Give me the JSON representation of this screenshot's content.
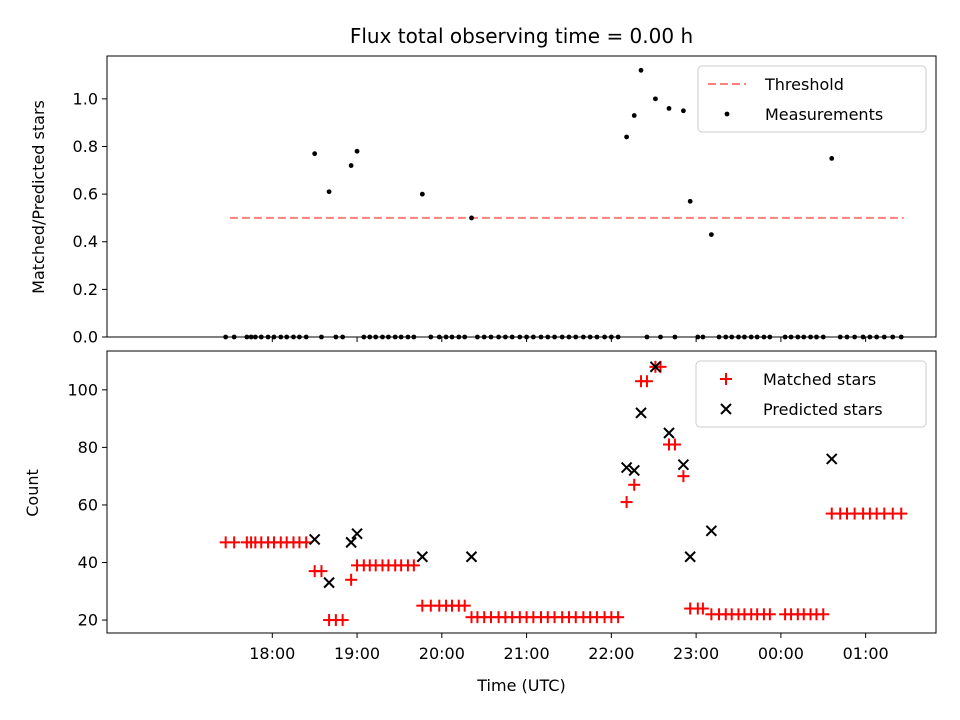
{
  "chart_data": {
    "type": "scatter",
    "title": "Flux total observing time = 0.00 h",
    "xlabel": "Time (UTC)",
    "x_unit": "hours since 17:00 UTC on axis shown as clock time",
    "xlim": [
      16.05,
      25.83
    ],
    "x_ticks": [
      {
        "value": 18,
        "label": "18:00"
      },
      {
        "value": 19,
        "label": "19:00"
      },
      {
        "value": 20,
        "label": "20:00"
      },
      {
        "value": 21,
        "label": "21:00"
      },
      {
        "value": 22,
        "label": "22:00"
      },
      {
        "value": 23,
        "label": "23:00"
      },
      {
        "value": 24,
        "label": "00:00"
      },
      {
        "value": 25,
        "label": "01:00"
      }
    ],
    "x_tick_times": [
      "18:00",
      "19:00",
      "20:00",
      "21:00",
      "22:00",
      "23:00",
      "00:00",
      "01:00"
    ],
    "panels": [
      {
        "ylabel": "Matched/Predicted stars",
        "ylim": [
          0,
          1.18
        ],
        "y_ticks": [
          "0.0",
          "0.2",
          "0.4",
          "0.6",
          "0.8",
          "1.0"
        ],
        "legend_position": "top-right",
        "threshold": {
          "name": "Threshold",
          "y": 0.5,
          "x_start": 17.5,
          "x_end": 25.45,
          "color": "#ff7f7f",
          "style": "dashed"
        },
        "measurements": {
          "name": "Measurements",
          "color": "#000000",
          "points": [
            [
              17.45,
              0
            ],
            [
              17.55,
              0
            ],
            [
              17.7,
              0
            ],
            [
              17.75,
              0
            ],
            [
              17.8,
              0
            ],
            [
              17.87,
              0
            ],
            [
              17.95,
              0
            ],
            [
              18.02,
              0
            ],
            [
              18.1,
              0
            ],
            [
              18.17,
              0
            ],
            [
              18.25,
              0
            ],
            [
              18.32,
              0
            ],
            [
              18.4,
              0
            ],
            [
              18.5,
              0.77
            ],
            [
              18.58,
              0
            ],
            [
              18.67,
              0.61
            ],
            [
              18.75,
              0
            ],
            [
              18.83,
              0
            ],
            [
              18.93,
              0.72
            ],
            [
              19.0,
              0.78
            ],
            [
              19.08,
              0
            ],
            [
              19.15,
              0
            ],
            [
              19.22,
              0
            ],
            [
              19.3,
              0
            ],
            [
              19.37,
              0
            ],
            [
              19.45,
              0
            ],
            [
              19.52,
              0
            ],
            [
              19.6,
              0
            ],
            [
              19.67,
              0
            ],
            [
              19.77,
              0.6
            ],
            [
              19.87,
              0
            ],
            [
              19.97,
              0
            ],
            [
              20.05,
              0
            ],
            [
              20.12,
              0
            ],
            [
              20.2,
              0
            ],
            [
              20.27,
              0
            ],
            [
              20.35,
              0.5
            ],
            [
              20.42,
              0
            ],
            [
              20.5,
              0
            ],
            [
              20.58,
              0
            ],
            [
              20.67,
              0
            ],
            [
              20.75,
              0
            ],
            [
              20.83,
              0
            ],
            [
              20.92,
              0
            ],
            [
              21.0,
              0
            ],
            [
              21.08,
              0
            ],
            [
              21.17,
              0
            ],
            [
              21.25,
              0
            ],
            [
              21.33,
              0
            ],
            [
              21.42,
              0
            ],
            [
              21.5,
              0
            ],
            [
              21.58,
              0
            ],
            [
              21.67,
              0
            ],
            [
              21.75,
              0
            ],
            [
              21.83,
              0
            ],
            [
              21.92,
              0
            ],
            [
              22.0,
              0
            ],
            [
              22.08,
              0
            ],
            [
              22.18,
              0.84
            ],
            [
              22.27,
              0.93
            ],
            [
              22.35,
              1.12
            ],
            [
              22.42,
              0
            ],
            [
              22.52,
              1.0
            ],
            [
              22.58,
              0
            ],
            [
              22.68,
              0.96
            ],
            [
              22.75,
              0
            ],
            [
              22.85,
              0.95
            ],
            [
              22.93,
              0.57
            ],
            [
              23.02,
              0
            ],
            [
              23.08,
              0
            ],
            [
              23.18,
              0.43
            ],
            [
              23.27,
              0
            ],
            [
              23.35,
              0
            ],
            [
              23.42,
              0
            ],
            [
              23.5,
              0
            ],
            [
              23.57,
              0
            ],
            [
              23.65,
              0
            ],
            [
              23.72,
              0
            ],
            [
              23.8,
              0
            ],
            [
              23.87,
              0
            ],
            [
              24.05,
              0
            ],
            [
              24.12,
              0
            ],
            [
              24.2,
              0
            ],
            [
              24.27,
              0
            ],
            [
              24.35,
              0
            ],
            [
              24.42,
              0
            ],
            [
              24.5,
              0
            ],
            [
              24.6,
              0.75
            ],
            [
              24.7,
              0
            ],
            [
              24.78,
              0
            ],
            [
              24.87,
              0
            ],
            [
              24.97,
              0
            ],
            [
              25.05,
              0
            ],
            [
              25.13,
              0
            ],
            [
              25.22,
              0
            ],
            [
              25.32,
              0
            ],
            [
              25.42,
              0
            ]
          ]
        }
      },
      {
        "ylabel": "Count",
        "ylim": [
          15.5,
          113.5
        ],
        "y_ticks": [
          "20",
          "40",
          "60",
          "80",
          "100"
        ],
        "legend_position": "top-right",
        "matched": {
          "name": "Matched stars",
          "color": "#ff0000",
          "marker": "plus",
          "points": [
            [
              17.45,
              47
            ],
            [
              17.55,
              47
            ],
            [
              17.7,
              47
            ],
            [
              17.75,
              47
            ],
            [
              17.8,
              47
            ],
            [
              17.87,
              47
            ],
            [
              17.95,
              47
            ],
            [
              18.02,
              47
            ],
            [
              18.1,
              47
            ],
            [
              18.17,
              47
            ],
            [
              18.25,
              47
            ],
            [
              18.32,
              47
            ],
            [
              18.4,
              47
            ],
            [
              18.5,
              37
            ],
            [
              18.58,
              37
            ],
            [
              18.67,
              20
            ],
            [
              18.75,
              20
            ],
            [
              18.83,
              20
            ],
            [
              18.93,
              34
            ],
            [
              19.0,
              39
            ],
            [
              19.08,
              39
            ],
            [
              19.15,
              39
            ],
            [
              19.22,
              39
            ],
            [
              19.3,
              39
            ],
            [
              19.37,
              39
            ],
            [
              19.45,
              39
            ],
            [
              19.52,
              39
            ],
            [
              19.6,
              39
            ],
            [
              19.67,
              39
            ],
            [
              19.77,
              25
            ],
            [
              19.87,
              25
            ],
            [
              19.97,
              25
            ],
            [
              20.05,
              25
            ],
            [
              20.12,
              25
            ],
            [
              20.2,
              25
            ],
            [
              20.27,
              25
            ],
            [
              20.35,
              21
            ],
            [
              20.42,
              21
            ],
            [
              20.5,
              21
            ],
            [
              20.58,
              21
            ],
            [
              20.67,
              21
            ],
            [
              20.75,
              21
            ],
            [
              20.83,
              21
            ],
            [
              20.92,
              21
            ],
            [
              21.0,
              21
            ],
            [
              21.08,
              21
            ],
            [
              21.17,
              21
            ],
            [
              21.25,
              21
            ],
            [
              21.33,
              21
            ],
            [
              21.42,
              21
            ],
            [
              21.5,
              21
            ],
            [
              21.58,
              21
            ],
            [
              21.67,
              21
            ],
            [
              21.75,
              21
            ],
            [
              21.83,
              21
            ],
            [
              21.92,
              21
            ],
            [
              22.0,
              21
            ],
            [
              22.08,
              21
            ],
            [
              22.18,
              61
            ],
            [
              22.27,
              67
            ],
            [
              22.35,
              103
            ],
            [
              22.42,
              103
            ],
            [
              22.52,
              108
            ],
            [
              22.58,
              108
            ],
            [
              22.68,
              81
            ],
            [
              22.75,
              81
            ],
            [
              22.85,
              70
            ],
            [
              22.93,
              24
            ],
            [
              23.02,
              24
            ],
            [
              23.08,
              24
            ],
            [
              23.18,
              22
            ],
            [
              23.27,
              22
            ],
            [
              23.35,
              22
            ],
            [
              23.42,
              22
            ],
            [
              23.5,
              22
            ],
            [
              23.57,
              22
            ],
            [
              23.65,
              22
            ],
            [
              23.72,
              22
            ],
            [
              23.8,
              22
            ],
            [
              23.87,
              22
            ],
            [
              24.05,
              22
            ],
            [
              24.12,
              22
            ],
            [
              24.2,
              22
            ],
            [
              24.27,
              22
            ],
            [
              24.35,
              22
            ],
            [
              24.42,
              22
            ],
            [
              24.5,
              22
            ],
            [
              24.6,
              57
            ],
            [
              24.7,
              57
            ],
            [
              24.78,
              57
            ],
            [
              24.87,
              57
            ],
            [
              24.97,
              57
            ],
            [
              25.05,
              57
            ],
            [
              25.13,
              57
            ],
            [
              25.22,
              57
            ],
            [
              25.32,
              57
            ],
            [
              25.42,
              57
            ]
          ]
        },
        "predicted": {
          "name": "Predicted stars",
          "color": "#000000",
          "marker": "x",
          "points": [
            [
              18.5,
              48
            ],
            [
              18.67,
              33
            ],
            [
              18.93,
              47
            ],
            [
              19.0,
              50
            ],
            [
              19.77,
              42
            ],
            [
              20.35,
              42
            ],
            [
              22.18,
              73
            ],
            [
              22.27,
              72
            ],
            [
              22.35,
              92
            ],
            [
              22.52,
              108
            ],
            [
              22.68,
              85
            ],
            [
              22.85,
              74
            ],
            [
              22.93,
              42
            ],
            [
              23.18,
              51
            ],
            [
              24.6,
              76
            ]
          ]
        }
      }
    ]
  }
}
